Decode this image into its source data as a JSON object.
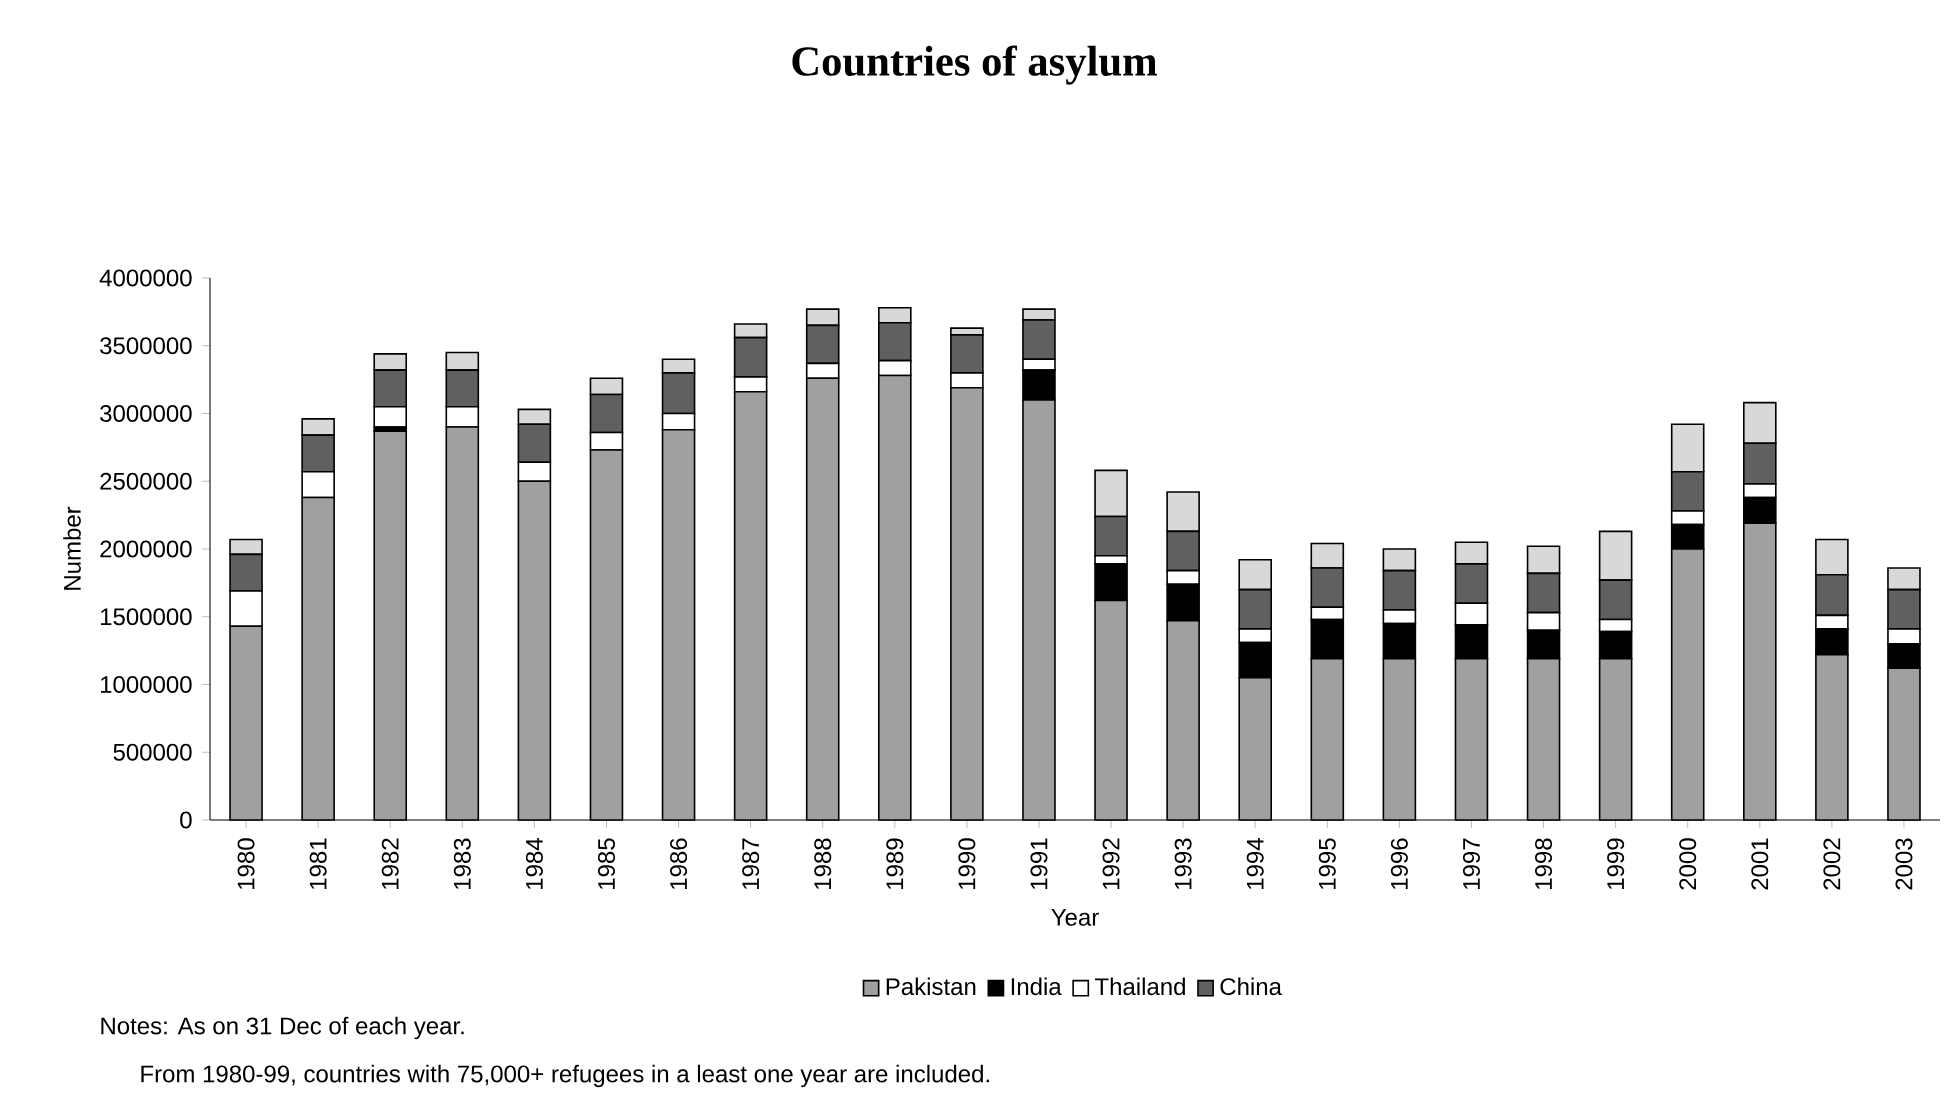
{
  "chart_data": {
    "type": "bar",
    "stacked": true,
    "title": "Countries of asylum",
    "xlabel": "Year",
    "ylabel": "Number",
    "categories": [
      "1980",
      "1981",
      "1982",
      "1983",
      "1984",
      "1985",
      "1986",
      "1987",
      "1988",
      "1989",
      "1990",
      "1991",
      "1992",
      "1993",
      "1994",
      "1995",
      "1996",
      "1997",
      "1998",
      "1999",
      "2000",
      "2001",
      "2002",
      "2003"
    ],
    "series": [
      {
        "name": "Pakistan",
        "color": "#a0a0a0",
        "values": [
          1430000,
          2380000,
          2870000,
          2900000,
          2500000,
          2730000,
          2880000,
          3160000,
          3260000,
          3280000,
          3190000,
          3100000,
          1620000,
          1470000,
          1050000,
          1190000,
          1190000,
          1190000,
          1190000,
          1190000,
          2000000,
          2190000,
          1220000,
          1120000
        ]
      },
      {
        "name": "India",
        "color": "#000000",
        "values": [
          0,
          0,
          30000,
          0,
          0,
          0,
          0,
          0,
          0,
          0,
          0,
          220000,
          270000,
          270000,
          260000,
          290000,
          260000,
          250000,
          210000,
          200000,
          180000,
          190000,
          190000,
          180000
        ]
      },
      {
        "name": "Thailand",
        "color": "#ffffff",
        "values": [
          260000,
          190000,
          150000,
          150000,
          140000,
          130000,
          120000,
          110000,
          110000,
          110000,
          110000,
          80000,
          60000,
          100000,
          100000,
          90000,
          100000,
          160000,
          130000,
          90000,
          100000,
          100000,
          100000,
          110000
        ]
      },
      {
        "name": "China",
        "color": "#606060",
        "values": [
          270000,
          270000,
          270000,
          270000,
          280000,
          280000,
          300000,
          290000,
          280000,
          280000,
          280000,
          290000,
          290000,
          290000,
          290000,
          290000,
          290000,
          290000,
          290000,
          290000,
          290000,
          300000,
          300000,
          290000
        ]
      },
      {
        "color": "#d8d8d8",
        "values": [
          110000,
          120000,
          120000,
          130000,
          110000,
          120000,
          100000,
          100000,
          120000,
          110000,
          50000,
          80000,
          340000,
          290000,
          220000,
          180000,
          160000,
          160000,
          200000,
          360000,
          350000,
          300000,
          260000,
          160000
        ]
      }
    ],
    "ylim": [
      0,
      4000000
    ],
    "yticks": [
      0,
      500000,
      1000000,
      1500000,
      2000000,
      2500000,
      3000000,
      3500000,
      4000000
    ],
    "legend": "bottom",
    "annotations": [
      "Notes: As on 31 Dec of each year.",
      "From 1980-99, countries with 75,000+ refugees in a least one year are included."
    ]
  }
}
